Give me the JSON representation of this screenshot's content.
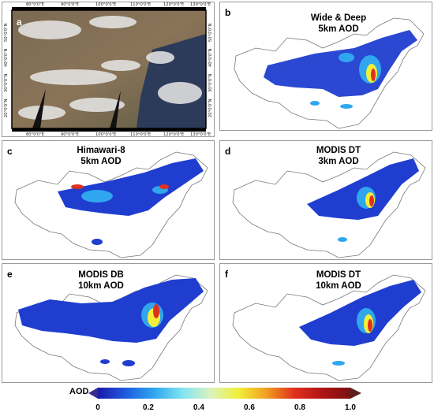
{
  "panels": {
    "a": {
      "label": "a",
      "top_ticks": [
        "80°0'0\"E",
        "90°0'0\"E",
        "100°0'0\"E",
        "110°0'0\"E",
        "120°0'0\"E",
        "130°0'0\"E"
      ],
      "bottom_ticks": [
        "80°0'0\"E",
        "90°0'0\"E",
        "100°0'0\"E",
        "110°0'0\"E",
        "120°0'0\"E",
        "130°0'0\"E"
      ],
      "left_ticks": [
        "50°0'0\"N",
        "40°0'0\"N",
        "30°0'0\"N",
        "20°0'0\"N"
      ],
      "right_ticks": [
        "50°0'0\"N",
        "40°0'0\"N",
        "30°0'0\"N",
        "20°0'0\"N"
      ]
    },
    "b": {
      "label": "b",
      "title1": "Wide & Deep",
      "title2": "5km AOD"
    },
    "c": {
      "label": "c",
      "title1": "Himawari-8",
      "title2": "5km AOD"
    },
    "d": {
      "label": "d",
      "title1": "MODIS DT",
      "title2": "3km AOD"
    },
    "e": {
      "label": "e",
      "title1": "MODIS DB",
      "title2": "10km AOD"
    },
    "f": {
      "label": "f",
      "title1": "MODIS DT",
      "title2": "10km AOD"
    }
  },
  "colorbar": {
    "label": "AOD",
    "ticks": [
      "0",
      "0.2",
      "0.4",
      "0.6",
      "0.8",
      "1.0"
    ],
    "tick_values": [
      0,
      0.2,
      0.4,
      0.6,
      0.8,
      1.0
    ],
    "range": [
      0,
      1.0
    ],
    "colors": [
      "#1a1aa8",
      "#1f5ce0",
      "#2fa6ee",
      "#7fe3f2",
      "#d9f3c0",
      "#f2ef3a",
      "#f0a020",
      "#e0301e",
      "#b01515",
      "#7a1010"
    ],
    "extend_low_color": "#3b2a8f",
    "extend_high_color": "#5a1f1f"
  }
}
